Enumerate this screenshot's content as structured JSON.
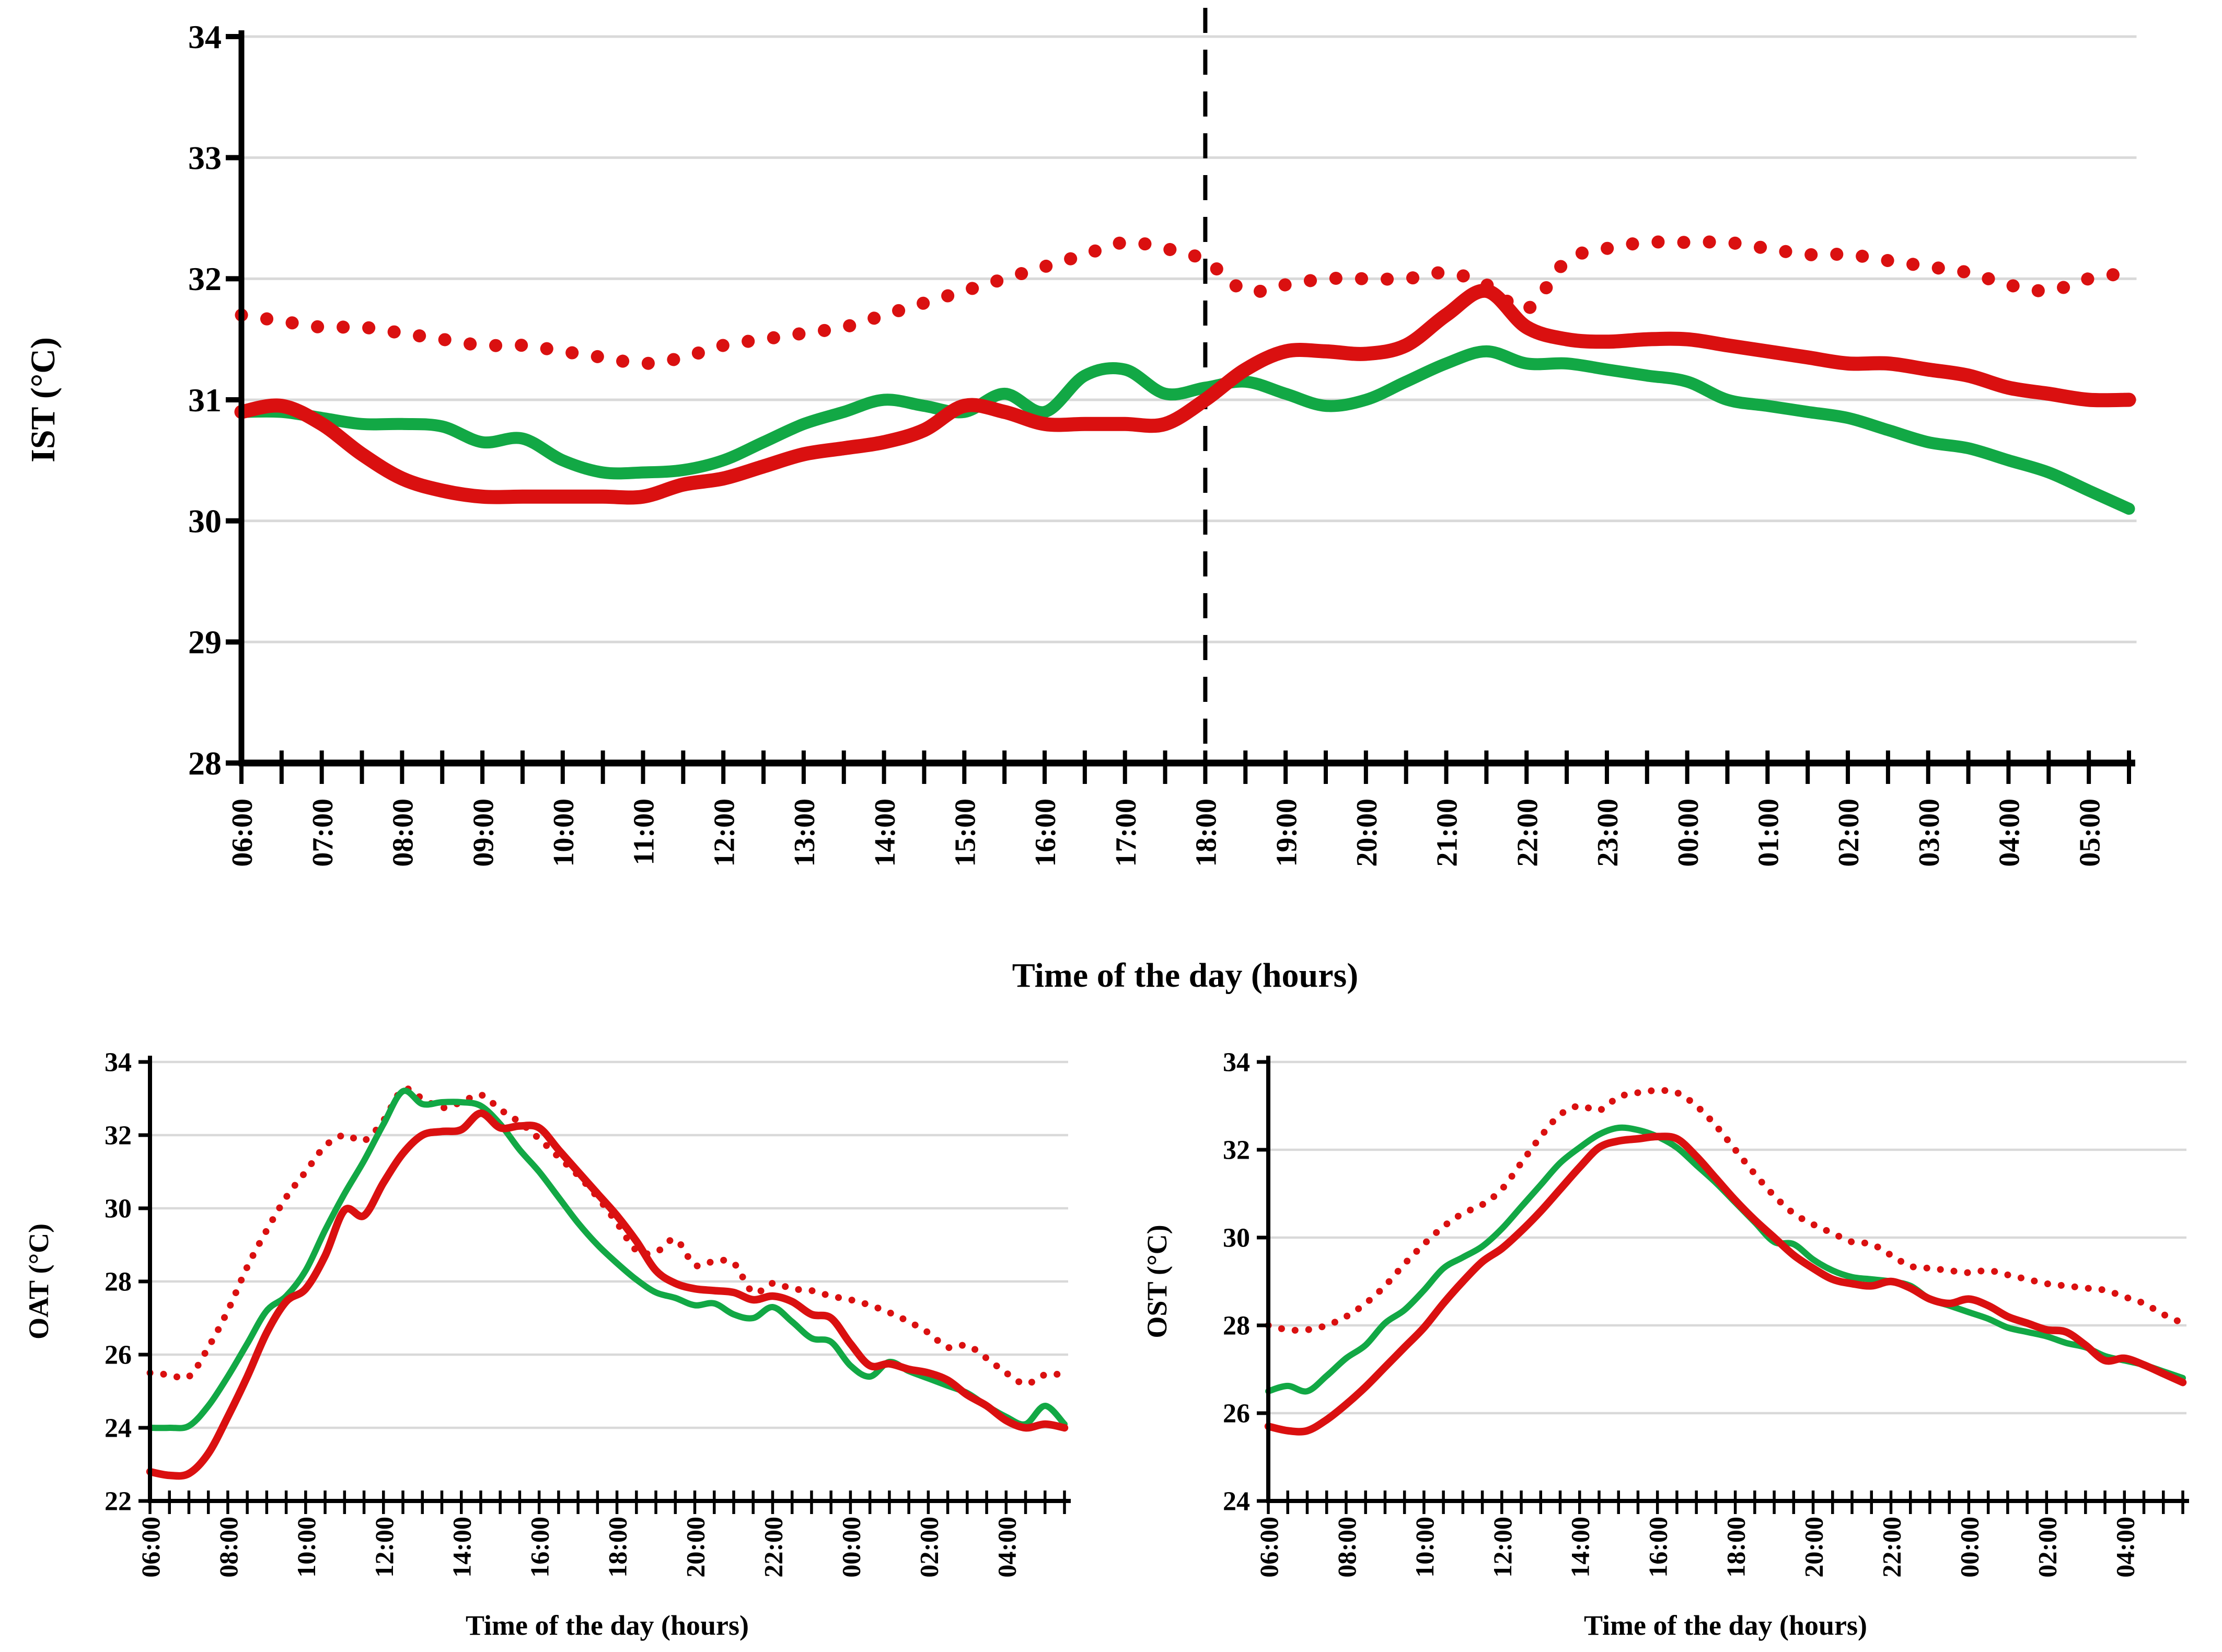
{
  "page": {
    "background": "#ffffff"
  },
  "colors": {
    "red": "#da1010",
    "green": "#12a845",
    "grid": "#d9d9d9",
    "axis": "#000000",
    "dash_line": "#000000"
  },
  "time_axis": {
    "start": "06:00",
    "step_minutes": 30,
    "hours_span": 23.5
  },
  "chart_data": [
    {
      "id": "ist",
      "type": "line",
      "title": "",
      "ylabel": "IST (°C)",
      "xlabel": "Time of the day (hours)",
      "ylim": [
        28,
        34
      ],
      "yticks": [
        28,
        29,
        30,
        31,
        32,
        33,
        34
      ],
      "grid": true,
      "legend_position": "none",
      "xtick_labels": [
        "06:00",
        "07:00",
        "08:00",
        "09:00",
        "10:00",
        "11:00",
        "12:00",
        "13:00",
        "14:00",
        "15:00",
        "16:00",
        "17:00",
        "18:00",
        "19:00",
        "20:00",
        "21:00",
        "22:00",
        "23:00",
        "00:00",
        "01:00",
        "02:00",
        "03:00",
        "04:00",
        "05:00"
      ],
      "annotations": [
        {
          "type": "vline",
          "x": "18:00",
          "style": "dashed",
          "color": "#000000"
        }
      ],
      "series": [
        {
          "name": "red-dotted",
          "style": "dotted",
          "color": "red",
          "values": [
            31.7,
            31.65,
            31.6,
            31.6,
            31.55,
            31.5,
            31.45,
            31.45,
            31.4,
            31.35,
            31.3,
            31.35,
            31.45,
            31.5,
            31.55,
            31.6,
            31.7,
            31.8,
            31.9,
            32.0,
            32.1,
            32.2,
            32.3,
            32.25,
            32.15,
            31.9,
            31.95,
            32.0,
            32.0,
            32.0,
            32.05,
            31.95,
            31.75,
            32.15,
            32.25,
            32.3,
            32.3,
            32.3,
            32.25,
            32.2,
            32.2,
            32.15,
            32.1,
            32.05,
            31.95,
            31.9,
            32.0,
            32.05
          ]
        },
        {
          "name": "green-solid",
          "style": "solid",
          "color": "green",
          "values": [
            30.9,
            30.9,
            30.85,
            30.8,
            30.8,
            30.78,
            30.65,
            30.68,
            30.5,
            30.4,
            30.4,
            30.42,
            30.5,
            30.65,
            30.8,
            30.9,
            31.0,
            30.95,
            30.9,
            31.05,
            30.9,
            31.2,
            31.25,
            31.05,
            31.1,
            31.15,
            31.05,
            30.95,
            31.0,
            31.15,
            31.3,
            31.4,
            31.3,
            31.3,
            31.25,
            31.2,
            31.15,
            31.0,
            30.95,
            30.9,
            30.85,
            30.75,
            30.65,
            30.6,
            30.5,
            30.4,
            30.25,
            30.1
          ]
        },
        {
          "name": "red-solid",
          "style": "solid",
          "color": "red",
          "values": [
            30.9,
            30.95,
            30.8,
            30.55,
            30.35,
            30.25,
            30.2,
            30.2,
            30.2,
            30.2,
            30.2,
            30.3,
            30.35,
            30.45,
            30.55,
            30.6,
            30.65,
            30.75,
            30.95,
            30.9,
            30.8,
            30.8,
            30.8,
            30.8,
            31.0,
            31.25,
            31.4,
            31.4,
            31.38,
            31.45,
            31.7,
            31.9,
            31.6,
            31.5,
            31.48,
            31.5,
            31.5,
            31.45,
            31.4,
            31.35,
            31.3,
            31.3,
            31.25,
            31.2,
            31.1,
            31.05,
            31.0,
            31.0
          ]
        }
      ]
    },
    {
      "id": "oat",
      "type": "line",
      "title": "",
      "ylabel": "OAT (°C)",
      "xlabel": "Time of the day (hours)",
      "ylim": [
        22,
        34
      ],
      "yticks": [
        22,
        24,
        26,
        28,
        30,
        32,
        34
      ],
      "grid": true,
      "legend_position": "none",
      "xtick_labels": [
        "06:00",
        "08:00",
        "10:00",
        "12:00",
        "14:00",
        "16:00",
        "18:00",
        "20:00",
        "22:00",
        "00:00",
        "02:00",
        "04:00"
      ],
      "annotations": [],
      "series": [
        {
          "name": "red-dotted",
          "style": "dotted",
          "color": "red",
          "values": [
            25.5,
            25.45,
            25.4,
            26.2,
            27.2,
            28.4,
            29.4,
            30.3,
            31.0,
            31.7,
            32.0,
            31.85,
            32.4,
            33.25,
            33.0,
            32.75,
            32.9,
            33.1,
            32.7,
            32.35,
            31.9,
            31.4,
            30.9,
            30.3,
            29.6,
            28.85,
            28.8,
            29.15,
            28.45,
            28.55,
            28.5,
            27.7,
            27.95,
            27.8,
            27.75,
            27.6,
            27.5,
            27.35,
            27.15,
            26.9,
            26.6,
            26.2,
            26.25,
            25.9,
            25.5,
            25.2,
            25.45,
            25.45
          ]
        },
        {
          "name": "green-solid",
          "style": "solid",
          "color": "green",
          "values": [
            24.0,
            24.0,
            24.05,
            24.6,
            25.4,
            26.3,
            27.2,
            27.6,
            28.3,
            29.4,
            30.4,
            31.3,
            32.3,
            33.2,
            32.85,
            32.9,
            32.9,
            32.8,
            32.3,
            31.6,
            31.0,
            30.3,
            29.6,
            29.0,
            28.5,
            28.05,
            27.7,
            27.55,
            27.35,
            27.4,
            27.1,
            27.0,
            27.3,
            26.9,
            26.45,
            26.35,
            25.7,
            25.4,
            25.8,
            25.55,
            25.35,
            25.15,
            24.95,
            24.6,
            24.3,
            24.1,
            24.6,
            24.1
          ]
        },
        {
          "name": "red-solid",
          "style": "solid",
          "color": "red",
          "values": [
            22.8,
            22.7,
            22.75,
            23.3,
            24.3,
            25.4,
            26.6,
            27.45,
            27.8,
            28.7,
            29.95,
            29.8,
            30.7,
            31.5,
            32.0,
            32.1,
            32.15,
            32.6,
            32.2,
            32.25,
            32.2,
            31.6,
            31.0,
            30.4,
            29.8,
            29.1,
            28.3,
            27.95,
            27.8,
            27.75,
            27.7,
            27.5,
            27.6,
            27.45,
            27.1,
            27.0,
            26.3,
            25.7,
            25.75,
            25.6,
            25.5,
            25.3,
            24.9,
            24.6,
            24.2,
            24.0,
            24.1,
            24.0
          ]
        }
      ]
    },
    {
      "id": "ost",
      "type": "line",
      "title": "",
      "ylabel": "OST (°C)",
      "xlabel": "Time of the day (hours)",
      "ylim": [
        24,
        34
      ],
      "yticks": [
        24,
        26,
        28,
        30,
        32,
        34
      ],
      "grid": true,
      "legend_position": "none",
      "xtick_labels": [
        "06:00",
        "08:00",
        "10:00",
        "12:00",
        "14:00",
        "16:00",
        "18:00",
        "20:00",
        "22:00",
        "00:00",
        "02:00",
        "04:00"
      ],
      "annotations": [],
      "series": [
        {
          "name": "red-dotted",
          "style": "dotted",
          "color": "red",
          "values": [
            28.0,
            27.9,
            27.9,
            28.0,
            28.2,
            28.5,
            28.9,
            29.4,
            29.85,
            30.25,
            30.55,
            30.75,
            31.1,
            31.7,
            32.3,
            32.8,
            33.0,
            32.9,
            33.2,
            33.3,
            33.35,
            33.3,
            33.0,
            32.55,
            32.0,
            31.45,
            30.95,
            30.55,
            30.3,
            30.1,
            29.9,
            29.85,
            29.6,
            29.35,
            29.3,
            29.25,
            29.2,
            29.25,
            29.15,
            29.05,
            28.95,
            28.9,
            28.85,
            28.8,
            28.65,
            28.5,
            28.25,
            28.05
          ]
        },
        {
          "name": "green-solid",
          "style": "solid",
          "color": "green",
          "values": [
            26.5,
            26.62,
            26.5,
            26.85,
            27.25,
            27.55,
            28.05,
            28.35,
            28.8,
            29.3,
            29.55,
            29.8,
            30.2,
            30.7,
            31.2,
            31.7,
            32.05,
            32.35,
            32.5,
            32.45,
            32.3,
            32.05,
            31.65,
            31.25,
            30.8,
            30.35,
            29.9,
            29.85,
            29.5,
            29.25,
            29.1,
            29.05,
            29.0,
            28.9,
            28.6,
            28.45,
            28.3,
            28.15,
            27.95,
            27.85,
            27.75,
            27.6,
            27.5,
            27.3,
            27.2,
            27.1,
            26.95,
            26.8
          ]
        },
        {
          "name": "red-solid",
          "style": "solid",
          "color": "red",
          "values": [
            25.7,
            25.6,
            25.6,
            25.85,
            26.2,
            26.6,
            27.05,
            27.5,
            27.95,
            28.5,
            29.0,
            29.45,
            29.75,
            30.15,
            30.6,
            31.1,
            31.6,
            32.05,
            32.2,
            32.25,
            32.3,
            32.25,
            31.85,
            31.35,
            30.85,
            30.4,
            30.0,
            29.6,
            29.3,
            29.05,
            28.95,
            28.9,
            29.0,
            28.85,
            28.6,
            28.5,
            28.6,
            28.45,
            28.2,
            28.05,
            27.9,
            27.85,
            27.55,
            27.2,
            27.25,
            27.1,
            26.9,
            26.7
          ]
        }
      ]
    }
  ]
}
